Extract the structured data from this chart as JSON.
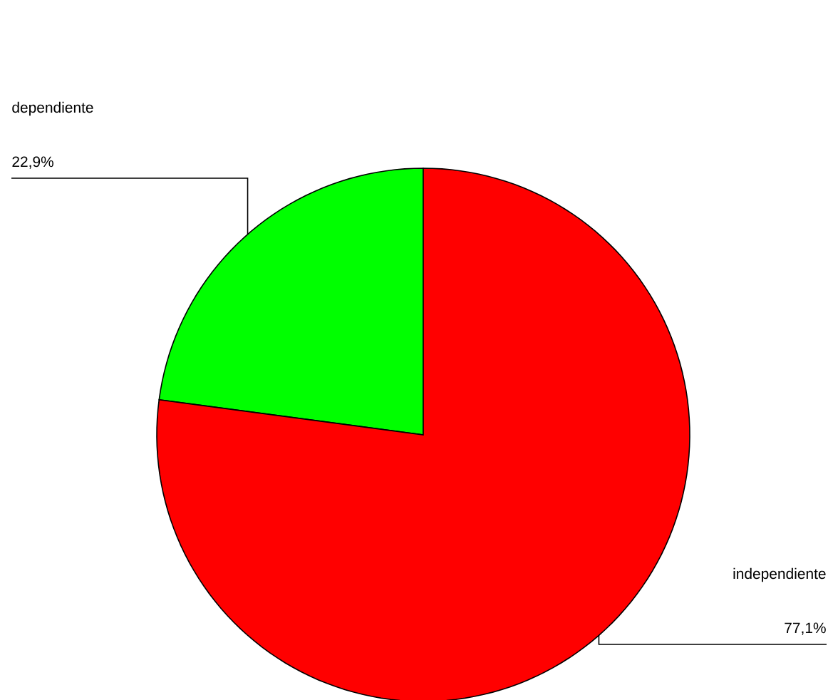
{
  "chart_data": {
    "type": "pie",
    "categories": [
      "dependiente",
      "independiente"
    ],
    "values": [
      22.9,
      77.1
    ],
    "colors": [
      "#00ff00",
      "#ff0000"
    ],
    "value_labels": [
      "22,9%",
      "77,1%"
    ]
  }
}
